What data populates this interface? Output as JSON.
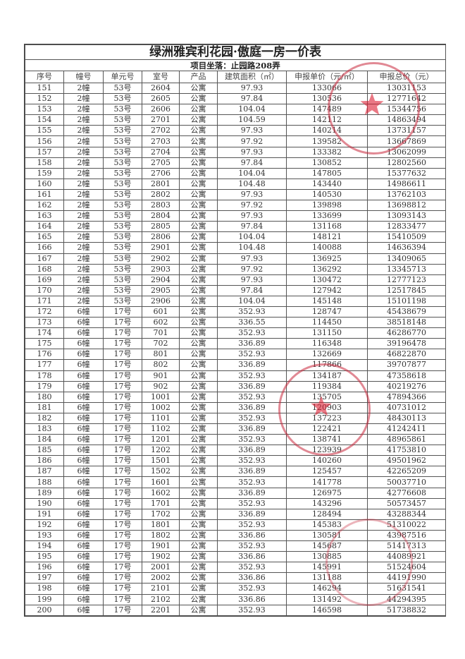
{
  "title": "绿洲雅宾利花园·傲庭一房一价表",
  "subtitle": "项目坐落：止园路208弄",
  "columns": [
    "序号",
    "幢号",
    "单元号",
    "室号",
    "产品",
    "建筑面积（㎡）",
    "申报单价（元/㎡）",
    "申报总价（元）"
  ],
  "rows": [
    [
      "151",
      "2幢",
      "53号",
      "2604",
      "公寓",
      "97.93",
      "133066",
      "13031153"
    ],
    [
      "152",
      "2幢",
      "53号",
      "2605",
      "公寓",
      "97.84",
      "130536",
      "12771642"
    ],
    [
      "153",
      "2幢",
      "53号",
      "2606",
      "公寓",
      "104.04",
      "147489",
      "15344756"
    ],
    [
      "154",
      "2幢",
      "53号",
      "2701",
      "公寓",
      "104.59",
      "142112",
      "14863494"
    ],
    [
      "155",
      "2幢",
      "53号",
      "2702",
      "公寓",
      "97.93",
      "140214",
      "13731157"
    ],
    [
      "156",
      "2幢",
      "53号",
      "2703",
      "公寓",
      "97.92",
      "139582",
      "13667869"
    ],
    [
      "157",
      "2幢",
      "53号",
      "2704",
      "公寓",
      "97.93",
      "133382",
      "13062099"
    ],
    [
      "158",
      "2幢",
      "53号",
      "2705",
      "公寓",
      "97.84",
      "130852",
      "12802560"
    ],
    [
      "159",
      "2幢",
      "53号",
      "2706",
      "公寓",
      "104.04",
      "147805",
      "15377632"
    ],
    [
      "160",
      "2幢",
      "53号",
      "2801",
      "公寓",
      "104.48",
      "143440",
      "14986611"
    ],
    [
      "161",
      "2幢",
      "53号",
      "2802",
      "公寓",
      "97.93",
      "140530",
      "13762103"
    ],
    [
      "162",
      "2幢",
      "53号",
      "2803",
      "公寓",
      "97.92",
      "139898",
      "13698812"
    ],
    [
      "163",
      "2幢",
      "53号",
      "2804",
      "公寓",
      "97.93",
      "133699",
      "13093143"
    ],
    [
      "164",
      "2幢",
      "53号",
      "2805",
      "公寓",
      "97.84",
      "131168",
      "12833477"
    ],
    [
      "165",
      "2幢",
      "53号",
      "2806",
      "公寓",
      "104.04",
      "148121",
      "15410509"
    ],
    [
      "166",
      "2幢",
      "53号",
      "2901",
      "公寓",
      "104.48",
      "140088",
      "14636394"
    ],
    [
      "167",
      "2幢",
      "53号",
      "2902",
      "公寓",
      "97.93",
      "136925",
      "13409065"
    ],
    [
      "168",
      "2幢",
      "53号",
      "2903",
      "公寓",
      "97.92",
      "136292",
      "13345713"
    ],
    [
      "169",
      "2幢",
      "53号",
      "2904",
      "公寓",
      "97.93",
      "130472",
      "12777123"
    ],
    [
      "170",
      "2幢",
      "53号",
      "2905",
      "公寓",
      "97.84",
      "127942",
      "12517845"
    ],
    [
      "171",
      "2幢",
      "53号",
      "2906",
      "公寓",
      "104.04",
      "145148",
      "15101198"
    ],
    [
      "172",
      "6幢",
      "17号",
      "601",
      "公寓",
      "352.93",
      "128747",
      "45438679"
    ],
    [
      "173",
      "6幢",
      "17号",
      "602",
      "公寓",
      "336.55",
      "114450",
      "38518148"
    ],
    [
      "174",
      "6幢",
      "17号",
      "701",
      "公寓",
      "352.93",
      "131150",
      "46286770"
    ],
    [
      "175",
      "6幢",
      "17号",
      "702",
      "公寓",
      "336.89",
      "116348",
      "39196478"
    ],
    [
      "176",
      "6幢",
      "17号",
      "801",
      "公寓",
      "352.93",
      "132669",
      "46822870"
    ],
    [
      "177",
      "6幢",
      "17号",
      "802",
      "公寓",
      "336.89",
      "117866",
      "39707877"
    ],
    [
      "178",
      "6幢",
      "17号",
      "901",
      "公寓",
      "352.93",
      "134187",
      "47358618"
    ],
    [
      "179",
      "6幢",
      "17号",
      "902",
      "公寓",
      "336.89",
      "119384",
      "40219276"
    ],
    [
      "180",
      "6幢",
      "17号",
      "1001",
      "公寓",
      "352.93",
      "135705",
      "47894366"
    ],
    [
      "181",
      "6幢",
      "17号",
      "1002",
      "公寓",
      "336.89",
      "120903",
      "40731012"
    ],
    [
      "182",
      "6幢",
      "17号",
      "1101",
      "公寓",
      "352.93",
      "137223",
      "48430113"
    ],
    [
      "183",
      "6幢",
      "17号",
      "1102",
      "公寓",
      "336.89",
      "122421",
      "41242411"
    ],
    [
      "184",
      "6幢",
      "17号",
      "1201",
      "公寓",
      "352.93",
      "138741",
      "48965861"
    ],
    [
      "185",
      "6幢",
      "17号",
      "1202",
      "公寓",
      "336.89",
      "123939",
      "41753810"
    ],
    [
      "186",
      "6幢",
      "17号",
      "1501",
      "公寓",
      "352.93",
      "140260",
      "49501962"
    ],
    [
      "187",
      "6幢",
      "17号",
      "1502",
      "公寓",
      "336.89",
      "125457",
      "42265209"
    ],
    [
      "188",
      "6幢",
      "17号",
      "1601",
      "公寓",
      "352.93",
      "141778",
      "50037710"
    ],
    [
      "189",
      "6幢",
      "17号",
      "1602",
      "公寓",
      "336.89",
      "126975",
      "42776608"
    ],
    [
      "190",
      "6幢",
      "17号",
      "1701",
      "公寓",
      "352.93",
      "143296",
      "50573457"
    ],
    [
      "191",
      "6幢",
      "17号",
      "1702",
      "公寓",
      "336.89",
      "128494",
      "43288344"
    ],
    [
      "192",
      "6幢",
      "17号",
      "1801",
      "公寓",
      "352.93",
      "145383",
      "51310022"
    ],
    [
      "193",
      "6幢",
      "17号",
      "1802",
      "公寓",
      "336.86",
      "130581",
      "43987516"
    ],
    [
      "194",
      "6幢",
      "17号",
      "1901",
      "公寓",
      "352.93",
      "145687",
      "51417313"
    ],
    [
      "195",
      "6幢",
      "17号",
      "1902",
      "公寓",
      "336.86",
      "130885",
      "44089921"
    ],
    [
      "196",
      "6幢",
      "17号",
      "2001",
      "公寓",
      "352.93",
      "145991",
      "51524604"
    ],
    [
      "197",
      "6幢",
      "17号",
      "2002",
      "公寓",
      "336.86",
      "131188",
      "44191990"
    ],
    [
      "198",
      "6幢",
      "17号",
      "2101",
      "公寓",
      "352.93",
      "146294",
      "51631541"
    ],
    [
      "199",
      "6幢",
      "17号",
      "2102",
      "公寓",
      "336.86",
      "131492",
      "44294395"
    ],
    [
      "200",
      "6幢",
      "17号",
      "2201",
      "公寓",
      "352.93",
      "146598",
      "51738832"
    ]
  ],
  "colors": {
    "stamp": "#c8283c",
    "ink": "#333333"
  }
}
